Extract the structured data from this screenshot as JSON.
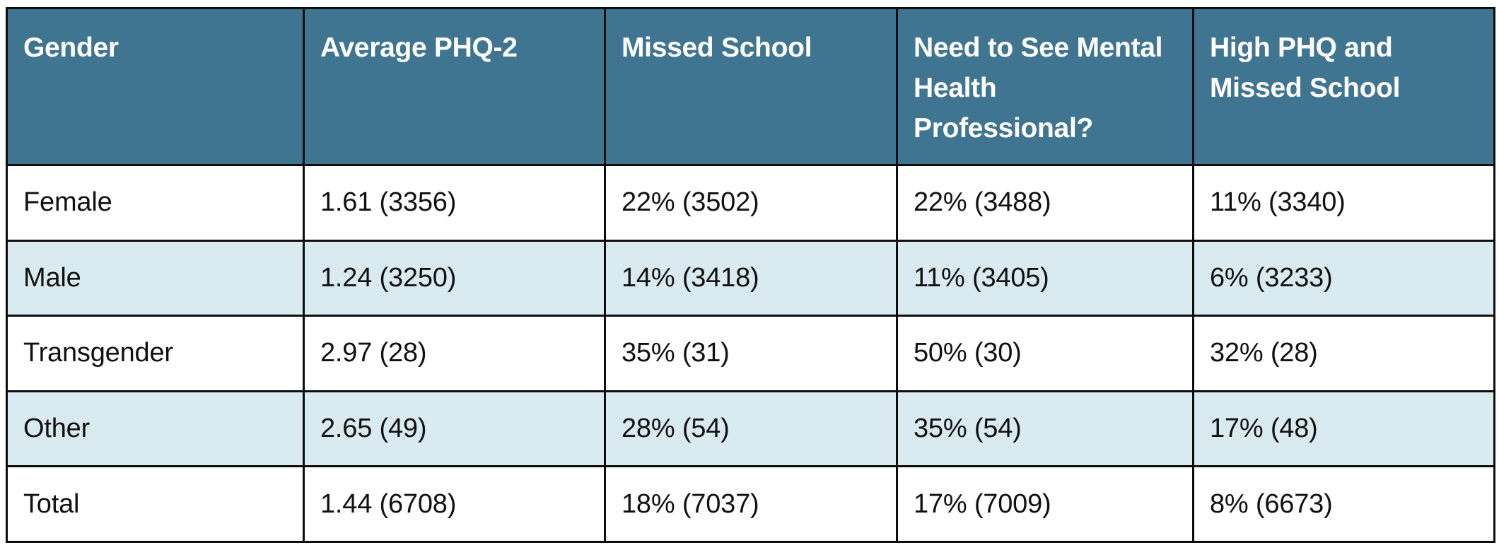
{
  "chart_data": {
    "type": "table",
    "columns": [
      "Gender",
      "Average PHQ-2",
      "Missed School",
      "Need to See Mental Health Professional?",
      "High PHQ and Missed School"
    ],
    "rows": [
      [
        "Female",
        "1.61 (3356)",
        "22% (3502)",
        "22% (3488)",
        "11% (3340)"
      ],
      [
        "Male",
        "1.24 (3250)",
        "14% (3418)",
        "11% (3405)",
        "6% (3233)"
      ],
      [
        "Transgender",
        "2.97 (28)",
        "35% (31)",
        "50% (30)",
        "32% (28)"
      ],
      [
        "Other",
        "2.65 (49)",
        "28% (54)",
        "35% (54)",
        "17% (48)"
      ],
      [
        "Total",
        "1.44 (6708)",
        "18% (7037)",
        "17% (7009)",
        "8% (6673)"
      ]
    ]
  },
  "colors": {
    "header_background": "#3f7590",
    "header_text": "#ffffff",
    "stripe_row": "#d9ebf0",
    "plain_row": "#ffffff",
    "border": "#0d0d0d"
  }
}
